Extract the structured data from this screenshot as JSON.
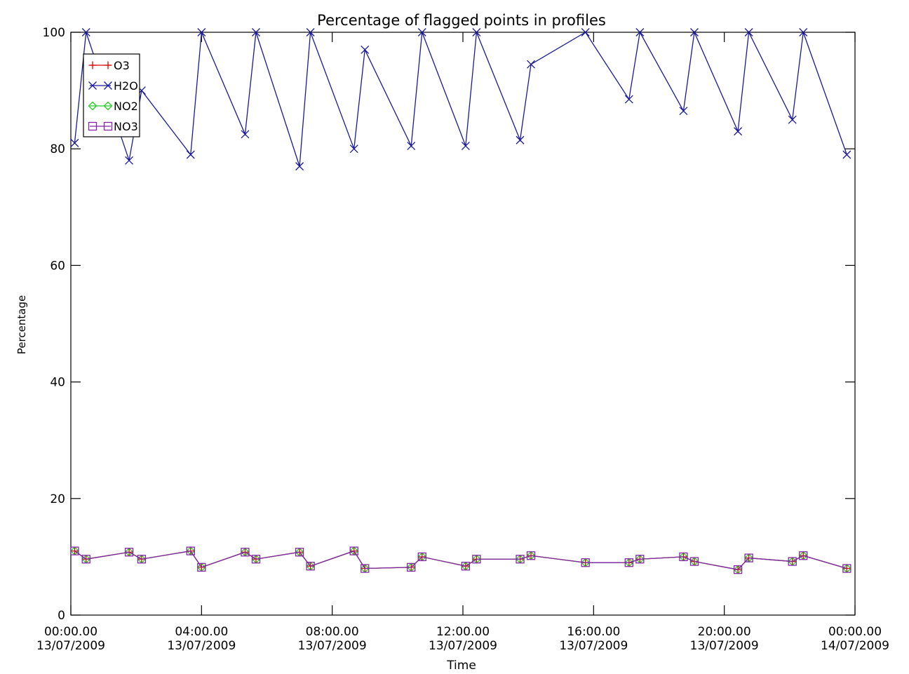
{
  "chart_data": {
    "type": "line",
    "title": "Percentage of flagged points in profiles",
    "xlabel": "Time",
    "ylabel": "Percentage",
    "xlim": [
      "2009-07-13T00:00",
      "2009-07-14T00:00"
    ],
    "ylim": [
      0,
      100
    ],
    "x_ticks": [
      {
        "value": "2009-07-13T00:00",
        "time": "00:00.00",
        "date": "13/07/2009"
      },
      {
        "value": "2009-07-13T04:00",
        "time": "04:00.00",
        "date": "13/07/2009"
      },
      {
        "value": "2009-07-13T08:00",
        "time": "08:00.00",
        "date": "13/07/2009"
      },
      {
        "value": "2009-07-13T12:00",
        "time": "12:00.00",
        "date": "13/07/2009"
      },
      {
        "value": "2009-07-13T16:00",
        "time": "16:00.00",
        "date": "13/07/2009"
      },
      {
        "value": "2009-07-13T20:00",
        "time": "20:00.00",
        "date": "13/07/2009"
      },
      {
        "value": "2009-07-14T00:00",
        "time": "00:00.00",
        "date": "14/07/2009"
      }
    ],
    "y_ticks": [
      0,
      20,
      40,
      60,
      80,
      100
    ],
    "legend_position": "top-left",
    "grid": false,
    "x": [
      "2009-07-13T00:07",
      "2009-07-13T00:28",
      "2009-07-13T01:47",
      "2009-07-13T02:10",
      "2009-07-13T03:40",
      "2009-07-13T04:00",
      "2009-07-13T05:20",
      "2009-07-13T05:40",
      "2009-07-13T07:00",
      "2009-07-13T07:20",
      "2009-07-13T08:40",
      "2009-07-13T09:00",
      "2009-07-13T10:25",
      "2009-07-13T10:45",
      "2009-07-13T12:05",
      "2009-07-13T12:25",
      "2009-07-13T13:45",
      "2009-07-13T14:05",
      "2009-07-13T15:45",
      "2009-07-13T17:05",
      "2009-07-13T17:25",
      "2009-07-13T18:45",
      "2009-07-13T19:05",
      "2009-07-13T20:25",
      "2009-07-13T20:45",
      "2009-07-13T22:05",
      "2009-07-13T22:25",
      "2009-07-13T23:45"
    ],
    "series": [
      {
        "name": "O3",
        "color": "#dd0000",
        "marker": "plus",
        "values": [
          11,
          9.6,
          10.8,
          9.6,
          11,
          8.2,
          10.8,
          9.6,
          10.8,
          8.4,
          11,
          8,
          8.2,
          10,
          8.4,
          9.6,
          9.6,
          10.2,
          9,
          9,
          9.6,
          10,
          9.2,
          7.8,
          9.8,
          9.2,
          10.2,
          8
        ]
      },
      {
        "name": "H2O",
        "color": "#1a1a9a",
        "marker": "x",
        "values": [
          81,
          100,
          78,
          90,
          79,
          100,
          82.5,
          100,
          77,
          100,
          80,
          97,
          80.5,
          100,
          80.5,
          100,
          81.5,
          94.5,
          100,
          88.5,
          100,
          86.5,
          100,
          83,
          100,
          85,
          100,
          79
        ]
      },
      {
        "name": "NO2",
        "color": "#22cc22",
        "marker": "diamond",
        "values": [
          11,
          9.6,
          10.8,
          9.6,
          11,
          8.2,
          10.8,
          9.6,
          10.8,
          8.4,
          11,
          8,
          8.2,
          10,
          8.4,
          9.6,
          9.6,
          10.2,
          9,
          9,
          9.6,
          10,
          9.2,
          7.8,
          9.8,
          9.2,
          10.2,
          8
        ]
      },
      {
        "name": "NO3",
        "color": "#8822aa",
        "marker": "square",
        "values": [
          11,
          9.6,
          10.8,
          9.6,
          11,
          8.2,
          10.8,
          9.6,
          10.8,
          8.4,
          11,
          8,
          8.2,
          10,
          8.4,
          9.6,
          9.6,
          10.2,
          9,
          9,
          9.6,
          10,
          9.2,
          7.8,
          9.8,
          9.2,
          10.2,
          8
        ]
      }
    ]
  }
}
